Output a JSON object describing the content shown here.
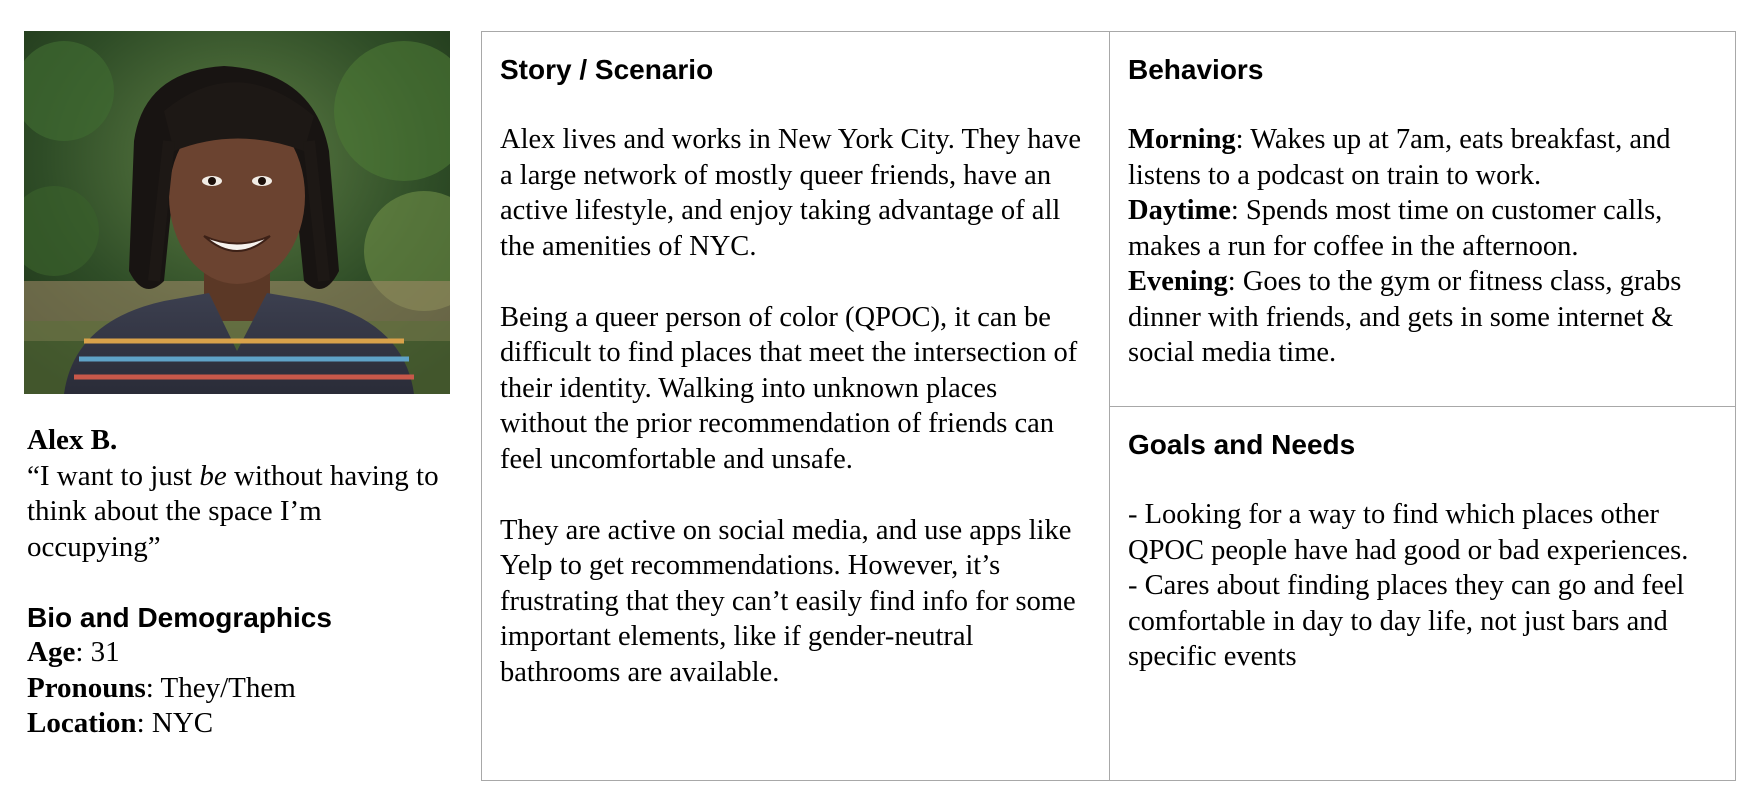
{
  "persona": {
    "name": "Alex B.",
    "quote_pre": "“I want to just ",
    "quote_em": "be",
    "quote_post": " without having to think about the space I’m occupying”",
    "bio_heading": "Bio and Demographics",
    "demographics": [
      {
        "label": "Age",
        "value": ": 31"
      },
      {
        "label": "Pronouns",
        "value": ": They/Them"
      },
      {
        "label": "Location",
        "value": ": NYC"
      }
    ]
  },
  "story": {
    "heading": "Story / Scenario",
    "paragraphs": [
      "Alex lives and works in New York City. They have a large network of mostly queer friends, have an active lifestyle, and enjoy taking advantage of all the amenities of NYC.",
      "Being a queer person of color (QPOC), it can be difficult to find places that meet the intersection of their identity. Walking into unknown places without the prior recommendation of friends can feel uncomfortable and unsafe.",
      "They are active on social media, and use apps like Yelp to get recommendations. However, it’s frustrating that they can’t easily find info for some important elements, like if gender-neutral bathrooms are available."
    ]
  },
  "behaviors": {
    "heading": "Behaviors",
    "items": [
      {
        "label": "Morning",
        "text": ": Wakes up at 7am, eats breakfast, and listens to a podcast on train to work."
      },
      {
        "label": "Daytime",
        "text": ": Spends most time on customer calls, makes a run for coffee in the afternoon."
      },
      {
        "label": "Evening",
        "text": ": Goes to the gym or fitness class, grabs dinner with friends, and gets in some internet & social media time."
      }
    ]
  },
  "goals": {
    "heading": "Goals and Needs",
    "items": [
      "- Looking for a way to find which places other QPOC people have had good or bad experiences.",
      "- Cares about finding places they can go and feel comfortable in day to day life, not just bars and specific events"
    ]
  }
}
